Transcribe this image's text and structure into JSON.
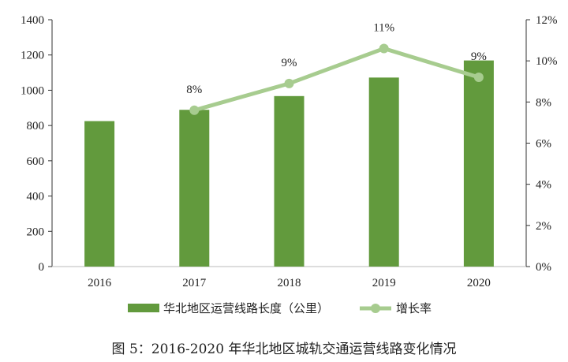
{
  "chart_data": {
    "type": "bar+line",
    "categories": [
      "2016",
      "2017",
      "2018",
      "2019",
      "2020"
    ],
    "series": [
      {
        "name": "华北地区运营线路长度（公里）",
        "type": "bar",
        "axis": "left",
        "values": [
          825,
          889,
          967,
          1072,
          1169
        ],
        "color": "#629a3d"
      },
      {
        "name": "增长率",
        "type": "line",
        "axis": "right",
        "values": [
          null,
          7.6,
          8.9,
          10.6,
          9.2
        ],
        "labels": [
          "",
          "8%",
          "9%",
          "11%",
          "9%"
        ],
        "color": "#a7cc8f"
      }
    ],
    "y_left": {
      "range": [
        0,
        1400
      ],
      "ticks": [
        "0",
        "200",
        "400",
        "600",
        "800",
        "1000",
        "1200",
        "1400"
      ]
    },
    "y_right": {
      "range": [
        0,
        12
      ],
      "ticks": [
        "0%",
        "2%",
        "4%",
        "6%",
        "8%",
        "10%",
        "12%"
      ]
    },
    "grid": false,
    "legend": "bottom",
    "caption": "图 5：2016-2020 年华北地区城轨交通运营线路变化情况"
  }
}
